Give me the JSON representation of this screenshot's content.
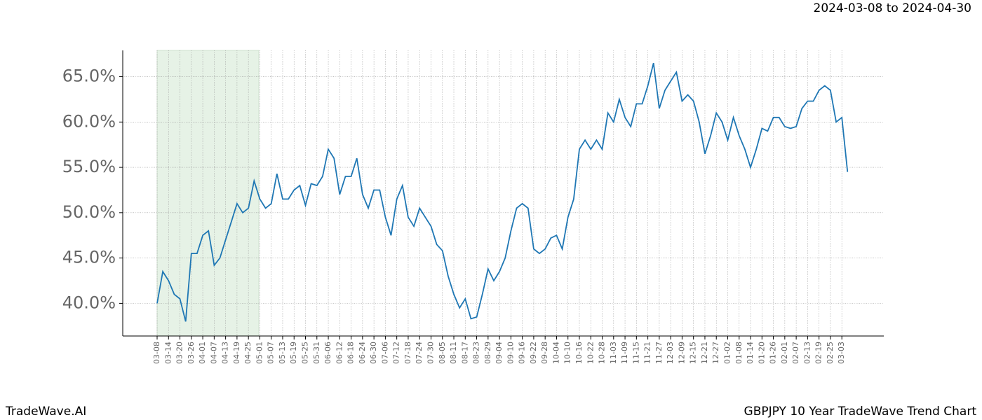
{
  "chart_data": {
    "type": "line",
    "title": "2024-03-08 to 2024-04-30",
    "footer_left": "TradeWave.AI",
    "footer_right": "GBPJPY 10 Year TradeWave Trend Chart",
    "color": "#1f77b4",
    "shade_color": "#e6f2e6",
    "grid": true,
    "categories": [
      "03-08",
      null,
      "03-14",
      null,
      "03-20",
      null,
      "03-26",
      null,
      "04-01",
      null,
      "04-07",
      null,
      "04-13",
      null,
      "04-19",
      null,
      "04-25",
      null,
      "05-01",
      null,
      "05-07",
      null,
      "05-13",
      null,
      "05-19",
      null,
      "05-25",
      null,
      "05-31",
      null,
      "06-06",
      null,
      "06-12",
      null,
      "06-18",
      null,
      "06-24",
      null,
      "06-30",
      null,
      "07-06",
      null,
      "07-12",
      null,
      "07-18",
      null,
      "07-24",
      null,
      "07-30",
      null,
      "08-05",
      null,
      "08-11",
      null,
      "08-17",
      null,
      "08-23",
      null,
      "08-29",
      null,
      "09-04",
      null,
      "09-10",
      null,
      "09-16",
      null,
      "09-22",
      null,
      "09-28",
      null,
      "10-04",
      null,
      "10-10",
      null,
      "10-16",
      null,
      "10-22",
      null,
      "10-28",
      null,
      "11-03",
      null,
      "11-09",
      null,
      "11-15",
      null,
      "11-21",
      null,
      "11-27",
      null,
      "12-03",
      null,
      "12-09",
      null,
      "12-15",
      null,
      "12-21",
      null,
      "12-27",
      null,
      "01-02",
      null,
      "01-08",
      null,
      "01-14",
      null,
      "01-20",
      null,
      "01-26",
      null,
      "02-01",
      null,
      "02-07",
      null,
      "02-13",
      null,
      "02-19",
      null,
      "02-25",
      null,
      "03-03",
      null
    ],
    "values": [
      40.0,
      43.5,
      42.5,
      41,
      40.5,
      38,
      45.5,
      45.5,
      47.5,
      48,
      44.2,
      45,
      47,
      49,
      51,
      50,
      50.5,
      53.5,
      51.5,
      50.5,
      51,
      54.3,
      51.5,
      51.5,
      52.5,
      53,
      50.8,
      53.2,
      53,
      54,
      57,
      56,
      52,
      54,
      54,
      56,
      52,
      50.5,
      52.5,
      52.5,
      49.5,
      47.5,
      51.5,
      53,
      49.5,
      48.5,
      50.5,
      49.5,
      48.5,
      46.5,
      45.8,
      43,
      41,
      39.5,
      40.5,
      38.3,
      38.5,
      41,
      43.8,
      42.5,
      43.5,
      45,
      48,
      50.5,
      51,
      50.5,
      46,
      45.5,
      46,
      47.2,
      47.5,
      46,
      49.5,
      51.5,
      57,
      58,
      57,
      58,
      57,
      61,
      60,
      62.5,
      60.5,
      59.5,
      62,
      62,
      64,
      66.5,
      61.5,
      63.5,
      64.5,
      65.5,
      62.3,
      63,
      62.3,
      60,
      56.5,
      58.5,
      61,
      60,
      58,
      60.5,
      58.5,
      57,
      55,
      57,
      59.3,
      59,
      60.5,
      60.5,
      59.5,
      59.3,
      59.5,
      61.5,
      62.3,
      62.3,
      63.5,
      64,
      63.5,
      60,
      60.5,
      54.5
    ],
    "ylim": [
      36.4,
      67.9
    ],
    "yticks": [
      {
        "value": 40,
        "label": "40.0%"
      },
      {
        "value": 45,
        "label": "45.0%"
      },
      {
        "value": 50,
        "label": "50.0%"
      },
      {
        "value": 55,
        "label": "55.0%"
      },
      {
        "value": 60,
        "label": "60.0%"
      },
      {
        "value": 65,
        "label": "65.0%"
      }
    ]
  }
}
